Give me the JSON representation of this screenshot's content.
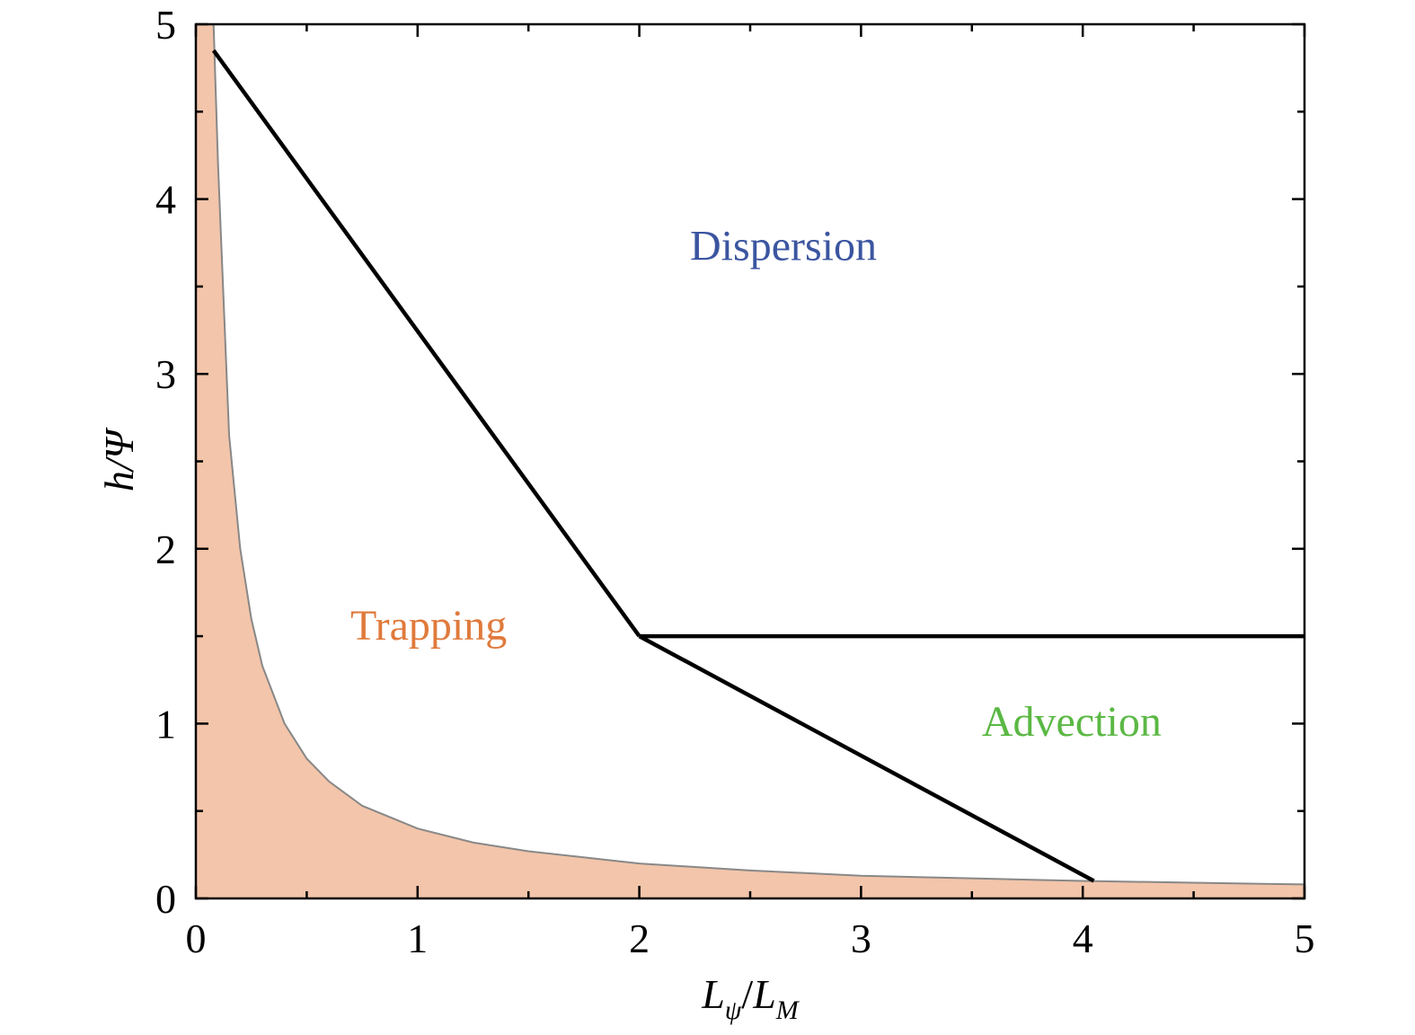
{
  "chart_data": {
    "type": "line",
    "xlabel": {
      "main": "L",
      "sub1": "ψ",
      "slash": "/",
      "main2": "L",
      "sub2": "M"
    },
    "ylabel": "h/Ψ",
    "xlim": [
      0,
      5
    ],
    "ylim": [
      0,
      5
    ],
    "x_ticks": [
      0,
      1,
      2,
      3,
      4,
      5
    ],
    "x_tick_labels": [
      "0",
      "1",
      "2",
      "3",
      "4",
      "5"
    ],
    "y_ticks": [
      0,
      1,
      2,
      3,
      4,
      5
    ],
    "y_tick_labels": [
      "0",
      "1",
      "2",
      "3",
      "4",
      "5"
    ],
    "grid": false,
    "shaded_region": {
      "color": "#f3c5aa",
      "edge_color": "#888888",
      "boundary": [
        [
          0.08,
          5.0
        ],
        [
          0.1,
          4.2
        ],
        [
          0.15,
          2.65
        ],
        [
          0.2,
          2.0
        ],
        [
          0.25,
          1.6
        ],
        [
          0.3,
          1.33
        ],
        [
          0.4,
          1.0
        ],
        [
          0.5,
          0.8
        ],
        [
          0.6,
          0.67
        ],
        [
          0.75,
          0.53
        ],
        [
          1.0,
          0.4
        ],
        [
          1.25,
          0.32
        ],
        [
          1.5,
          0.27
        ],
        [
          2.0,
          0.2
        ],
        [
          2.5,
          0.16
        ],
        [
          3.0,
          0.13
        ],
        [
          3.5,
          0.115
        ],
        [
          4.0,
          0.1
        ],
        [
          4.5,
          0.09
        ],
        [
          5.0,
          0.08
        ]
      ]
    },
    "series": [
      {
        "values": [
          [
            0.08,
            4.85
          ],
          [
            2.0,
            1.5
          ]
        ]
      },
      {
        "values": [
          [
            2.0,
            1.5
          ],
          [
            5.0,
            1.5
          ]
        ]
      },
      {
        "values": [
          [
            2.0,
            1.5
          ],
          [
            4.05,
            0.1
          ]
        ]
      }
    ],
    "line_color": "#000000",
    "annotations": [
      {
        "text": "Dispersion",
        "x": 2.65,
        "y": 3.65,
        "color": "#3b55a0"
      },
      {
        "text": "Trapping",
        "x": 1.05,
        "y": 1.48,
        "color": "#e07a3c"
      },
      {
        "text": "Advection",
        "x": 3.95,
        "y": 0.93,
        "color": "#5bb844"
      }
    ]
  }
}
